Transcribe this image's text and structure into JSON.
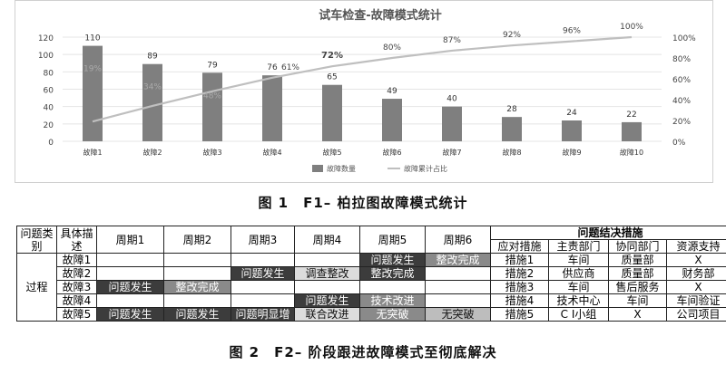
{
  "chart_data": {
    "type": "bar",
    "title": "试车检查-故障模式统计",
    "categories": [
      "故障1",
      "故障2",
      "故障3",
      "故障4",
      "故障5",
      "故障6",
      "故障7",
      "故障8",
      "故障9",
      "故障10"
    ],
    "series": [
      {
        "name": "故障数量",
        "type": "bar",
        "axis": "left",
        "values": [
          110,
          89,
          79,
          76,
          65,
          49,
          40,
          28,
          24,
          22
        ],
        "labels": [
          "110",
          "89",
          "79",
          "76",
          "65",
          "49",
          "40",
          "28",
          "24",
          "22"
        ]
      },
      {
        "name": "故障累计占比",
        "type": "line",
        "axis": "right",
        "values": [
          19,
          34,
          48,
          61,
          72,
          80,
          87,
          92,
          96,
          100
        ],
        "labels": [
          "19%",
          "34%",
          "48%",
          "61%",
          "72%",
          "80%",
          "87%",
          "92%",
          "96%",
          "100%"
        ]
      }
    ],
    "ylim": [
      0,
      120
    ],
    "y_ticks": [
      "0",
      "20",
      "40",
      "60",
      "80",
      "100",
      "120"
    ],
    "y2lim": [
      0,
      100
    ],
    "y2_ticks": [
      "0%",
      "20%",
      "40%",
      "60%",
      "80%",
      "100%"
    ],
    "legend_position": "bottom",
    "colors": {
      "bar": "#7f7f7f",
      "line": "#bfbfbf",
      "grid": "#e4e4e4",
      "text": "#444444"
    }
  },
  "fig1_caption": "图 1　F1– 柏拉图故障模式统计",
  "fig2_caption": "图 2　F2– 阶段跟进故障模式至彻底解决",
  "table": {
    "h_category": "问题类别",
    "h_specific": "具体描述",
    "periods": [
      "周期1",
      "周期2",
      "周期3",
      "周期4",
      "周期5",
      "周期6"
    ],
    "h_measures": "问题结决措施",
    "sub_headers": [
      "应对措施",
      "主责部门",
      "协同部门",
      "资源支持"
    ],
    "category_value": "过程",
    "rows": [
      {
        "name": "故障1",
        "cells": [
          "",
          "",
          "",
          "",
          "问题发生",
          "整改完成"
        ],
        "styles": [
          "",
          "",
          "",
          "",
          "dark",
          "mid"
        ],
        "measure": "措施1",
        "lead": "车间",
        "assist": "质量部",
        "resource": "X"
      },
      {
        "name": "故障2",
        "cells": [
          "",
          "",
          "问题发生",
          "调查整改",
          "整改完成",
          ""
        ],
        "styles": [
          "",
          "",
          "dark",
          "light",
          "dark",
          ""
        ],
        "measure": "措施2",
        "lead": "供应商",
        "assist": "质量部",
        "resource": "财务部"
      },
      {
        "name": "故障3",
        "cells": [
          "问题发生",
          "整改完成",
          "",
          "",
          "",
          ""
        ],
        "styles": [
          "dark",
          "mid",
          "",
          "",
          "",
          ""
        ],
        "measure": "措施3",
        "lead": "车间",
        "assist": "售后服务",
        "resource": "X"
      },
      {
        "name": "故障4",
        "cells": [
          "",
          "",
          "",
          "问题发生",
          "技术改进",
          ""
        ],
        "styles": [
          "",
          "",
          "",
          "dark",
          "mid",
          ""
        ],
        "measure": "措施4",
        "lead": "技术中心",
        "assist": "车间",
        "resource": "车间验证"
      },
      {
        "name": "故障5",
        "cells": [
          "问题发生",
          "问题发生",
          "问题明显增",
          "联合改进",
          "无突破",
          "无突破"
        ],
        "styles": [
          "dark",
          "dark",
          "dark",
          "light",
          "mid",
          "mid2"
        ],
        "measure": "措施5",
        "lead": "C I小组",
        "assist": "X",
        "resource": "公司项目"
      }
    ]
  }
}
